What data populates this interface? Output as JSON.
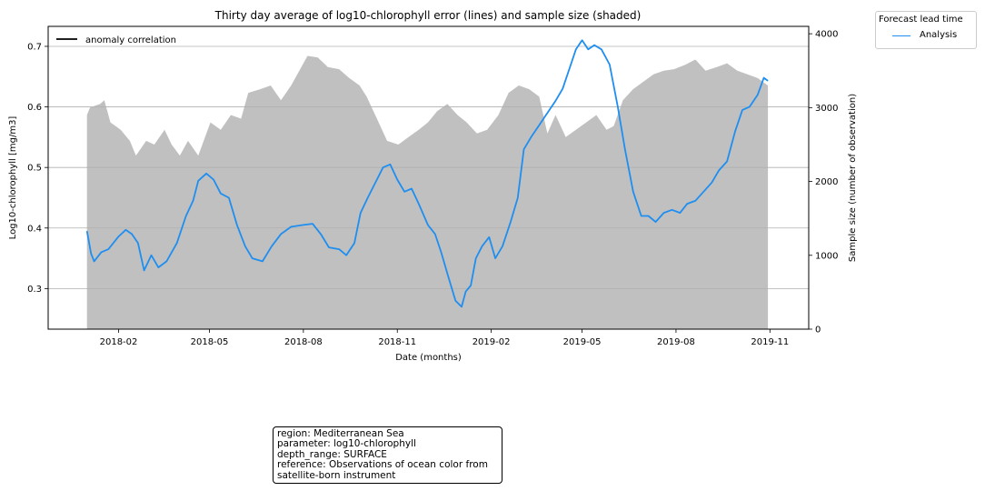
{
  "chart_data": {
    "type": "line",
    "title": "Thirty day average of log10-chlorophyll error (lines) and sample size (shaded)",
    "xlabel": "Date (months)",
    "ylabel": "Log10-chlorophyll [mg/m3]",
    "y2label": "Sample size (number of observation)",
    "x_ticks": [
      "2018-02",
      "2018-05",
      "2018-08",
      "2018-11",
      "2019-02",
      "2019-05",
      "2019-08",
      "2019-11"
    ],
    "y_ticks": [
      "0.3",
      "0.4",
      "0.5",
      "0.6",
      "0.7"
    ],
    "y2_ticks": [
      "0",
      "1000",
      "2000",
      "3000",
      "4000"
    ],
    "xlim": [
      "2017-11-24",
      "2019-12-09"
    ],
    "ylim": [
      0.233,
      0.733
    ],
    "y2lim": [
      0,
      4100
    ],
    "grid": "horizontal",
    "series": [
      {
        "name": "Analysis",
        "axis": "left",
        "color": "#1e8ef0",
        "points": [
          [
            "2018-01-01",
            0.395
          ],
          [
            "2018-01-05",
            0.358
          ],
          [
            "2018-01-08",
            0.345
          ],
          [
            "2018-01-15",
            0.36
          ],
          [
            "2018-01-22",
            0.365
          ],
          [
            "2018-02-01",
            0.386
          ],
          [
            "2018-02-08",
            0.397
          ],
          [
            "2018-02-14",
            0.39
          ],
          [
            "2018-02-20",
            0.375
          ],
          [
            "2018-02-26",
            0.33
          ],
          [
            "2018-03-05",
            0.355
          ],
          [
            "2018-03-12",
            0.335
          ],
          [
            "2018-03-20",
            0.345
          ],
          [
            "2018-03-30",
            0.375
          ],
          [
            "2018-04-08",
            0.42
          ],
          [
            "2018-04-15",
            0.445
          ],
          [
            "2018-04-20",
            0.478
          ],
          [
            "2018-04-28",
            0.49
          ],
          [
            "2018-05-05",
            0.48
          ],
          [
            "2018-05-12",
            0.457
          ],
          [
            "2018-05-20",
            0.45
          ],
          [
            "2018-05-28",
            0.405
          ],
          [
            "2018-06-05",
            0.37
          ],
          [
            "2018-06-12",
            0.35
          ],
          [
            "2018-06-22",
            0.345
          ],
          [
            "2018-07-01",
            0.37
          ],
          [
            "2018-07-10",
            0.39
          ],
          [
            "2018-07-20",
            0.402
          ],
          [
            "2018-08-01",
            0.405
          ],
          [
            "2018-08-10",
            0.407
          ],
          [
            "2018-08-18",
            0.39
          ],
          [
            "2018-08-26",
            0.368
          ],
          [
            "2018-09-05",
            0.365
          ],
          [
            "2018-09-12",
            0.355
          ],
          [
            "2018-09-20",
            0.375
          ],
          [
            "2018-09-26",
            0.425
          ],
          [
            "2018-10-03",
            0.45
          ],
          [
            "2018-10-12",
            0.48
          ],
          [
            "2018-10-18",
            0.5
          ],
          [
            "2018-10-25",
            0.505
          ],
          [
            "2018-11-01",
            0.48
          ],
          [
            "2018-11-08",
            0.46
          ],
          [
            "2018-11-15",
            0.465
          ],
          [
            "2018-11-22",
            0.44
          ],
          [
            "2018-12-01",
            0.405
          ],
          [
            "2018-12-08",
            0.39
          ],
          [
            "2018-12-14",
            0.36
          ],
          [
            "2018-12-20",
            0.325
          ],
          [
            "2018-12-28",
            0.28
          ],
          [
            "2019-01-03",
            0.27
          ],
          [
            "2019-01-07",
            0.295
          ],
          [
            "2019-01-12",
            0.305
          ],
          [
            "2019-01-17",
            0.35
          ],
          [
            "2019-01-23",
            0.37
          ],
          [
            "2019-01-30",
            0.385
          ],
          [
            "2019-02-05",
            0.35
          ],
          [
            "2019-02-12",
            0.37
          ],
          [
            "2019-02-20",
            0.41
          ],
          [
            "2019-02-27",
            0.45
          ],
          [
            "2019-03-05",
            0.53
          ],
          [
            "2019-03-12",
            0.55
          ],
          [
            "2019-03-20",
            0.57
          ],
          [
            "2019-03-28",
            0.59
          ],
          [
            "2019-04-05",
            0.61
          ],
          [
            "2019-04-12",
            0.63
          ],
          [
            "2019-04-20",
            0.67
          ],
          [
            "2019-04-25",
            0.695
          ],
          [
            "2019-05-01",
            0.71
          ],
          [
            "2019-05-07",
            0.695
          ],
          [
            "2019-05-13",
            0.702
          ],
          [
            "2019-05-20",
            0.695
          ],
          [
            "2019-05-28",
            0.67
          ],
          [
            "2019-06-05",
            0.6
          ],
          [
            "2019-06-12",
            0.53
          ],
          [
            "2019-06-20",
            0.46
          ],
          [
            "2019-06-28",
            0.42
          ],
          [
            "2019-07-05",
            0.42
          ],
          [
            "2019-07-12",
            0.41
          ],
          [
            "2019-07-20",
            0.425
          ],
          [
            "2019-07-28",
            0.43
          ],
          [
            "2019-08-05",
            0.425
          ],
          [
            "2019-08-12",
            0.44
          ],
          [
            "2019-08-20",
            0.445
          ],
          [
            "2019-08-28",
            0.46
          ],
          [
            "2019-09-05",
            0.475
          ],
          [
            "2019-09-12",
            0.495
          ],
          [
            "2019-09-20",
            0.51
          ],
          [
            "2019-09-28",
            0.56
          ],
          [
            "2019-10-05",
            0.595
          ],
          [
            "2019-10-12",
            0.6
          ],
          [
            "2019-10-20",
            0.62
          ],
          [
            "2019-10-26",
            0.648
          ],
          [
            "2019-10-30",
            0.643
          ]
        ]
      },
      {
        "name": "Sample size",
        "axis": "right",
        "type": "area",
        "color": "#c0c0c0",
        "points": [
          [
            "2018-01-01",
            2900
          ],
          [
            "2018-01-04",
            3000
          ],
          [
            "2018-01-14",
            3050
          ],
          [
            "2018-01-18",
            3100
          ],
          [
            "2018-01-24",
            2800
          ],
          [
            "2018-02-03",
            2700
          ],
          [
            "2018-02-12",
            2550
          ],
          [
            "2018-02-18",
            2350
          ],
          [
            "2018-02-28",
            2550
          ],
          [
            "2018-03-08",
            2500
          ],
          [
            "2018-03-18",
            2700
          ],
          [
            "2018-03-25",
            2500
          ],
          [
            "2018-04-02",
            2350
          ],
          [
            "2018-04-10",
            2550
          ],
          [
            "2018-04-20",
            2350
          ],
          [
            "2018-05-02",
            2800
          ],
          [
            "2018-05-12",
            2700
          ],
          [
            "2018-05-22",
            2900
          ],
          [
            "2018-06-01",
            2850
          ],
          [
            "2018-06-08",
            3200
          ],
          [
            "2018-06-20",
            3250
          ],
          [
            "2018-06-30",
            3300
          ],
          [
            "2018-07-10",
            3100
          ],
          [
            "2018-07-20",
            3300
          ],
          [
            "2018-07-28",
            3500
          ],
          [
            "2018-08-05",
            3700
          ],
          [
            "2018-08-15",
            3680
          ],
          [
            "2018-08-25",
            3550
          ],
          [
            "2018-09-05",
            3520
          ],
          [
            "2018-09-15",
            3400
          ],
          [
            "2018-09-25",
            3300
          ],
          [
            "2018-10-02",
            3150
          ],
          [
            "2018-10-12",
            2850
          ],
          [
            "2018-10-22",
            2550
          ],
          [
            "2018-11-02",
            2500
          ],
          [
            "2018-11-12",
            2600
          ],
          [
            "2018-11-22",
            2700
          ],
          [
            "2018-12-01",
            2800
          ],
          [
            "2018-12-10",
            2950
          ],
          [
            "2018-12-20",
            3050
          ],
          [
            "2018-12-30",
            2900
          ],
          [
            "2019-01-08",
            2800
          ],
          [
            "2019-01-18",
            2650
          ],
          [
            "2019-01-28",
            2700
          ],
          [
            "2019-02-08",
            2900
          ],
          [
            "2019-02-18",
            3200
          ],
          [
            "2019-02-28",
            3300
          ],
          [
            "2019-03-10",
            3250
          ],
          [
            "2019-03-20",
            3150
          ],
          [
            "2019-03-28",
            2650
          ],
          [
            "2019-04-05",
            2900
          ],
          [
            "2019-04-15",
            2600
          ],
          [
            "2019-04-25",
            2700
          ],
          [
            "2019-05-05",
            2800
          ],
          [
            "2019-05-15",
            2900
          ],
          [
            "2019-05-25",
            2700
          ],
          [
            "2019-06-01",
            2750
          ],
          [
            "2019-06-10",
            3100
          ],
          [
            "2019-06-20",
            3250
          ],
          [
            "2019-06-30",
            3350
          ],
          [
            "2019-07-10",
            3450
          ],
          [
            "2019-07-20",
            3500
          ],
          [
            "2019-07-30",
            3520
          ],
          [
            "2019-08-10",
            3580
          ],
          [
            "2019-08-20",
            3650
          ],
          [
            "2019-08-30",
            3500
          ],
          [
            "2019-09-10",
            3550
          ],
          [
            "2019-09-20",
            3600
          ],
          [
            "2019-09-30",
            3500
          ],
          [
            "2019-10-10",
            3450
          ],
          [
            "2019-10-20",
            3400
          ],
          [
            "2019-10-30",
            3300
          ]
        ]
      }
    ],
    "legends": [
      {
        "placement": "upper-left inside axes",
        "entries": [
          {
            "label": "anomaly correlation",
            "color": "#000000"
          }
        ]
      },
      {
        "placement": "outside right",
        "title": "Forecast lead time",
        "entries": [
          {
            "label": "Analysis",
            "color": "#1e8ef0"
          }
        ]
      }
    ],
    "annotation": {
      "lines": [
        "region: Mediterranean Sea",
        "parameter: log10-chlorophyll",
        "depth_range: SURFACE",
        "reference: Observations of ocean color from satellite-born instrument"
      ]
    }
  }
}
